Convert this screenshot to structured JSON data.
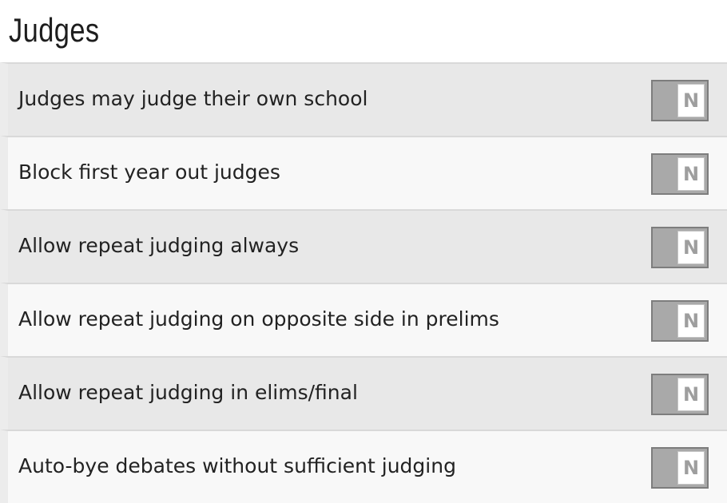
{
  "page": {
    "title": "Judges"
  },
  "settings": [
    {
      "label": "Judges may judge their own school",
      "value": "N"
    },
    {
      "label": "Block first year out judges",
      "value": "N"
    },
    {
      "label": "Allow repeat judging always",
      "value": "N"
    },
    {
      "label": "Allow repeat judging on opposite side in prelims",
      "value": "N"
    },
    {
      "label": "Allow repeat judging in elims/final",
      "value": "N"
    },
    {
      "label": "Auto-bye debates without sufficient judging",
      "value": "N"
    }
  ],
  "colors": {
    "row_odd": "#e8e8e8",
    "row_even": "#f8f8f8",
    "toggle_track": "#a9a9a9",
    "toggle_knob": "#ffffff",
    "toggle_text": "#9e9e9e"
  }
}
